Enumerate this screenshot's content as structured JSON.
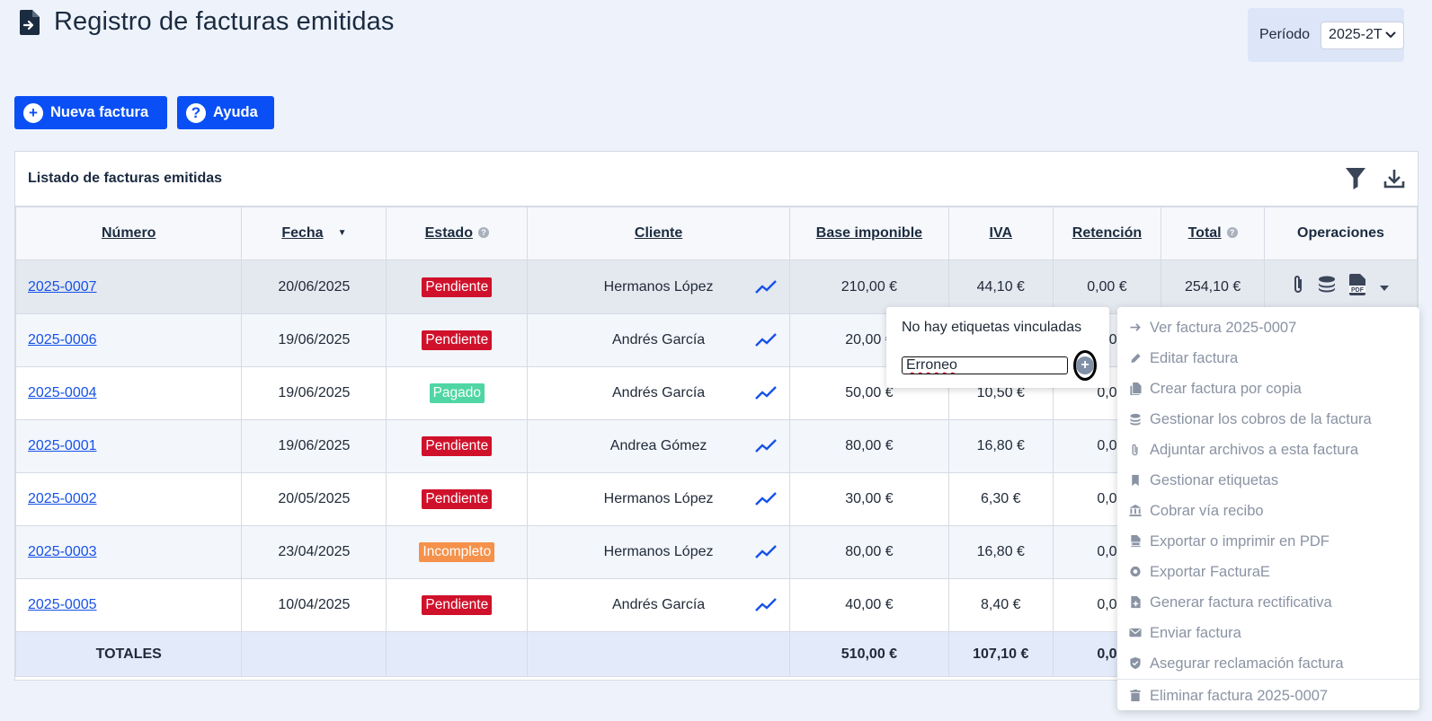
{
  "page": {
    "title": "Registro de facturas emitidas"
  },
  "period": {
    "label": "Período",
    "value": "2025-2T"
  },
  "actions": {
    "new_invoice": "Nueva factura",
    "help": "Ayuda"
  },
  "list": {
    "title": "Listado de facturas emitidas",
    "columns": {
      "numero": "Número",
      "fecha": "Fecha",
      "estado": "Estado",
      "cliente": "Cliente",
      "base": "Base imponible",
      "iva": "IVA",
      "retencion": "Retención",
      "total": "Total",
      "operaciones": "Operaciones"
    },
    "rows": [
      {
        "numero": "2025-0007",
        "fecha": "20/06/2025",
        "estado": "Pendiente",
        "cliente": "Hermanos López",
        "base": "210,00 €",
        "iva": "44,10 €",
        "retencion": "0,00 €",
        "total": "254,10 €"
      },
      {
        "numero": "2025-0006",
        "fecha": "19/06/2025",
        "estado": "Pendiente",
        "cliente": "Andrés García",
        "base": "20,00 €",
        "iva": "",
        "retencion": "0,0",
        "total": ""
      },
      {
        "numero": "2025-0004",
        "fecha": "19/06/2025",
        "estado": "Pagado",
        "cliente": "Andrés García",
        "base": "50,00 €",
        "iva": "10,50 €",
        "retencion": "0,0",
        "total": ""
      },
      {
        "numero": "2025-0001",
        "fecha": "19/06/2025",
        "estado": "Pendiente",
        "cliente": "Andrea Gómez",
        "base": "80,00 €",
        "iva": "16,80 €",
        "retencion": "0,0",
        "total": ""
      },
      {
        "numero": "2025-0002",
        "fecha": "20/05/2025",
        "estado": "Pendiente",
        "cliente": "Hermanos López",
        "base": "30,00 €",
        "iva": "6,30 €",
        "retencion": "0,0",
        "total": ""
      },
      {
        "numero": "2025-0003",
        "fecha": "23/04/2025",
        "estado": "Incompleto",
        "cliente": "Hermanos López",
        "base": "80,00 €",
        "iva": "16,80 €",
        "retencion": "0,0",
        "total": ""
      },
      {
        "numero": "2025-0005",
        "fecha": "10/04/2025",
        "estado": "Pendiente",
        "cliente": "Andrés García",
        "base": "40,00 €",
        "iva": "8,40 €",
        "retencion": "0,0",
        "total": ""
      }
    ],
    "totals": {
      "label": "TOTALES",
      "base": "510,00 €",
      "iva": "107,10 €",
      "retencion": "0,0",
      "total": ""
    }
  },
  "status_colors": {
    "Pendiente": "#d0112b",
    "Pagado": "#4fd6a4",
    "Incompleto": "#f5914a"
  },
  "accent_color": "#0a4ff5",
  "tag_popover": {
    "empty_text": "No hay etiquetas vinculadas",
    "input_value": "Erroneo"
  },
  "ops_menu": {
    "items": [
      {
        "label": "Ver factura 2025-0007",
        "icon": "arrow-right-icon"
      },
      {
        "label": "Editar factura",
        "icon": "pencil-icon"
      },
      {
        "label": "Crear factura por copia",
        "icon": "copy-icon"
      },
      {
        "label": "Gestionar los cobros de la factura",
        "icon": "coins-icon"
      },
      {
        "label": "Adjuntar archivos a esta factura",
        "icon": "paperclip-icon"
      },
      {
        "label": "Gestionar etiquetas",
        "icon": "bookmark-icon"
      },
      {
        "label": "Cobrar vía recibo",
        "icon": "bank-icon"
      },
      {
        "label": "Exportar o imprimir en PDF",
        "icon": "pdf-icon"
      },
      {
        "label": "Exportar FacturaE",
        "icon": "facturae-icon"
      },
      {
        "label": "Generar factura rectificativa",
        "icon": "file-plus-icon"
      },
      {
        "label": "Enviar factura",
        "icon": "mail-icon"
      },
      {
        "label": "Asegurar reclamación factura",
        "icon": "shield-icon"
      },
      {
        "label": "Eliminar factura 2025-0007",
        "icon": "trash-icon"
      }
    ]
  }
}
